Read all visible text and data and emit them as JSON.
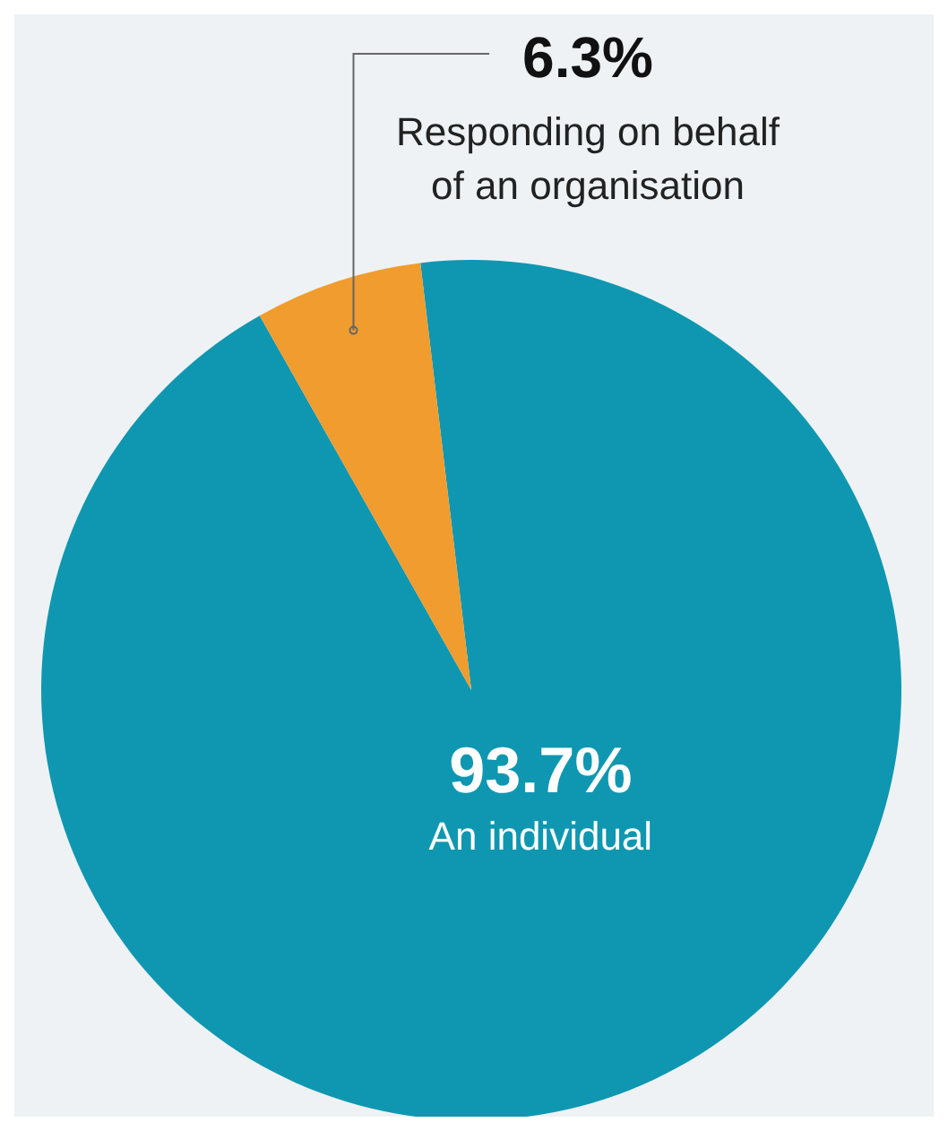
{
  "chart_data": {
    "type": "pie",
    "categories": [
      "An individual",
      "Responding on behalf of an organisation"
    ],
    "values": [
      93.7,
      6.3
    ],
    "colors": [
      "#0f97b1",
      "#f09c2e"
    ],
    "value_labels": [
      "93.7%",
      "6.3%"
    ]
  }
}
